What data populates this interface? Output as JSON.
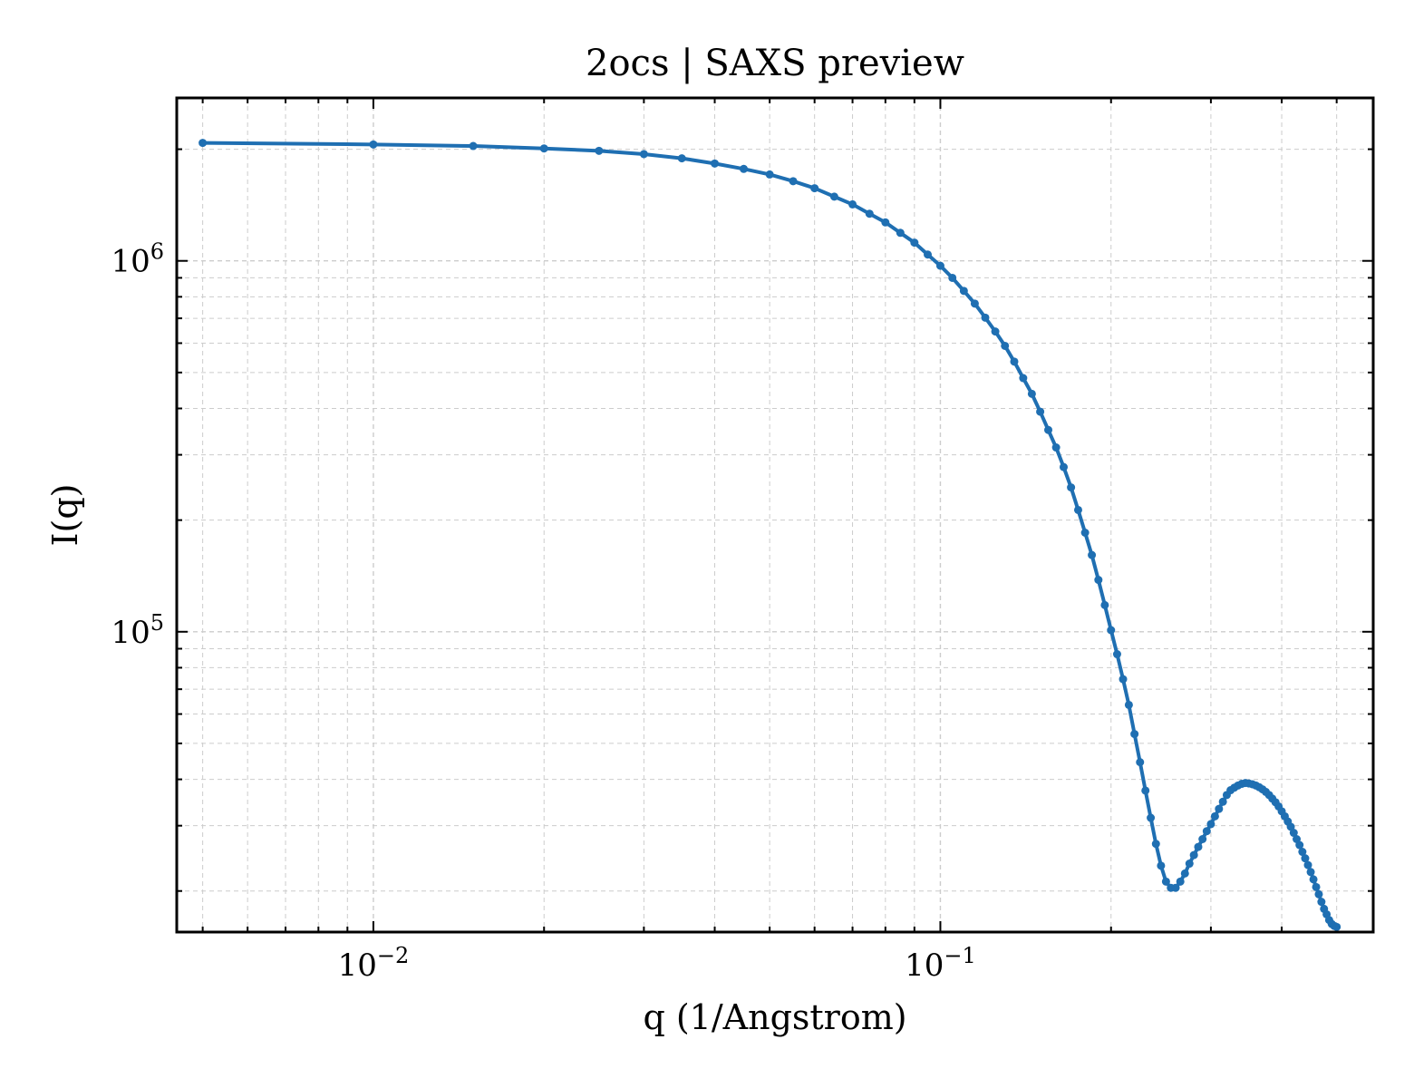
{
  "chart_data": {
    "type": "line",
    "title": "2ocs | SAXS preview",
    "xlabel": "q (1/Angstrom)",
    "ylabel": "I(q)",
    "xscale": "log",
    "yscale": "log",
    "xlim": [
      0.0045,
      0.58
    ],
    "ylim": [
      15500,
      2750000
    ],
    "grid": true,
    "legend": "none",
    "x_ticks": [
      {
        "value": 0.01,
        "base": "10",
        "exp": "−2"
      },
      {
        "value": 0.1,
        "base": "10",
        "exp": "−1"
      }
    ],
    "y_ticks": [
      {
        "value": 100000,
        "base": "10",
        "exp": "5"
      },
      {
        "value": 1000000,
        "base": "10",
        "exp": "6"
      }
    ],
    "series": [
      {
        "color": "#1f6fb2",
        "x": [
          0.005,
          0.01,
          0.015,
          0.02,
          0.025,
          0.03,
          0.035,
          0.04,
          0.045,
          0.05,
          0.055,
          0.06,
          0.065,
          0.07,
          0.075,
          0.08,
          0.085,
          0.09,
          0.095,
          0.1,
          0.105,
          0.11,
          0.115,
          0.12,
          0.125,
          0.13,
          0.135,
          0.14,
          0.145,
          0.15,
          0.155,
          0.16,
          0.165,
          0.17,
          0.175,
          0.18,
          0.185,
          0.19,
          0.195,
          0.2,
          0.205,
          0.21,
          0.215,
          0.22,
          0.225,
          0.23,
          0.235,
          0.24,
          0.245,
          0.25,
          0.255,
          0.26,
          0.265,
          0.27,
          0.275,
          0.28,
          0.285,
          0.29,
          0.295,
          0.3,
          0.305,
          0.31,
          0.315,
          0.32,
          0.325,
          0.33,
          0.335,
          0.34,
          0.345,
          0.35,
          0.355,
          0.36,
          0.365,
          0.37,
          0.375,
          0.38,
          0.385,
          0.39,
          0.395,
          0.4,
          0.405,
          0.41,
          0.415,
          0.42,
          0.425,
          0.43,
          0.435,
          0.44,
          0.445,
          0.45,
          0.455,
          0.46,
          0.465,
          0.47,
          0.475,
          0.48,
          0.485,
          0.49,
          0.495,
          0.5
        ],
        "y": [
          2080000,
          2060000,
          2040000,
          2010000,
          1980000,
          1940000,
          1890000,
          1830000,
          1770000,
          1710000,
          1640000,
          1570000,
          1490000,
          1420000,
          1340000,
          1270000,
          1190000,
          1120000,
          1040000,
          970000,
          900000,
          830000,
          767000,
          703000,
          645000,
          590000,
          535000,
          483000,
          438000,
          392000,
          350000,
          314000,
          278000,
          245000,
          213000,
          185000,
          161000,
          138000,
          118000,
          101000,
          87000,
          74500,
          63500,
          53000,
          44500,
          37300,
          31500,
          26800,
          23400,
          21200,
          20400,
          20400,
          21200,
          22300,
          23700,
          25000,
          26300,
          27600,
          29000,
          30300,
          31800,
          33300,
          34800,
          36300,
          37400,
          38000,
          38500,
          38900,
          39100,
          39000,
          38800,
          38500,
          38100,
          37600,
          37000,
          36300,
          35500,
          34700,
          33800,
          32800,
          31800,
          30800,
          29800,
          28700,
          27600,
          26600,
          25500,
          24500,
          23500,
          22500,
          21500,
          20500,
          19600,
          18700,
          17900,
          17300,
          16700,
          16300,
          16100,
          16000
        ]
      }
    ]
  }
}
